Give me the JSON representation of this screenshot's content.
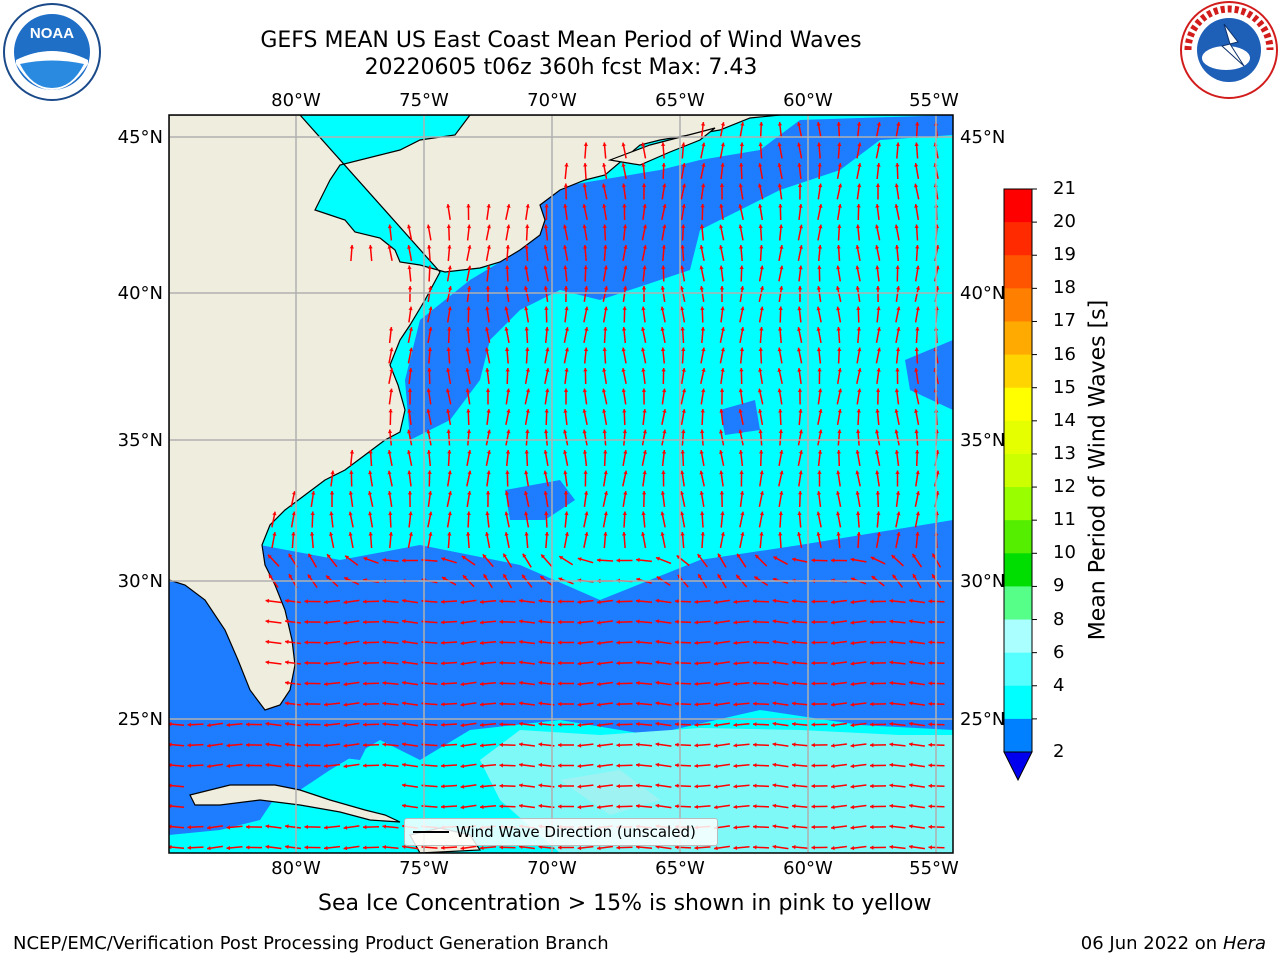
{
  "title": {
    "line1": "GEFS MEAN US East Coast Mean Period of Wind Waves",
    "line2": "20220605 t06z 360h fcst   Max: 7.43"
  },
  "logos": {
    "left": "noaa-logo",
    "right": "nws-logo"
  },
  "axes": {
    "lon_labels": [
      "80°W",
      "75°W",
      "70°W",
      "65°W",
      "60°W",
      "55°W"
    ],
    "lat_labels": [
      "45°N",
      "40°N",
      "35°N",
      "30°N",
      "25°N"
    ],
    "lon_values": [
      -80,
      -75,
      -70,
      -65,
      -60,
      -55
    ],
    "lat_values": [
      45,
      40,
      35,
      30,
      25
    ],
    "lon_range": [
      -85,
      -54.5
    ],
    "lat_range": [
      20.4,
      46
    ]
  },
  "colorbar": {
    "title": "Mean Period of Wind Waves [s]",
    "ticks": [
      "21",
      "20",
      "19",
      "18",
      "17",
      "16",
      "15",
      "14",
      "13",
      "12",
      "11",
      "10",
      "9",
      "8",
      "6",
      "4",
      "2"
    ],
    "colors": [
      "#ff0000",
      "#ff2a00",
      "#ff5500",
      "#ff8000",
      "#ffaa00",
      "#ffd400",
      "#ffff00",
      "#e6ff00",
      "#ccff00",
      "#99ff00",
      "#55ee00",
      "#00dd00",
      "#55ff88",
      "#aaffff",
      "#55ffff",
      "#00ffff",
      "#0080ff"
    ],
    "extend_color": "#0000ee"
  },
  "legend": {
    "label": "Wind Wave Direction (unscaled)"
  },
  "note": "Sea Ice Concentration > 15% is shown in pink to yellow",
  "footer": {
    "left": "NCEP/EMC/Verification Post Processing Product Generation Branch",
    "date": "06 Jun 2022 on",
    "machine": "Hera"
  },
  "colors": {
    "land": "#efedde",
    "ocean_low": "#1e7cff",
    "ocean_mid": "#00ffff",
    "ocean_high": "#7ff8f8",
    "arrow": "#ff0000",
    "grid": "#b0b0b0"
  }
}
